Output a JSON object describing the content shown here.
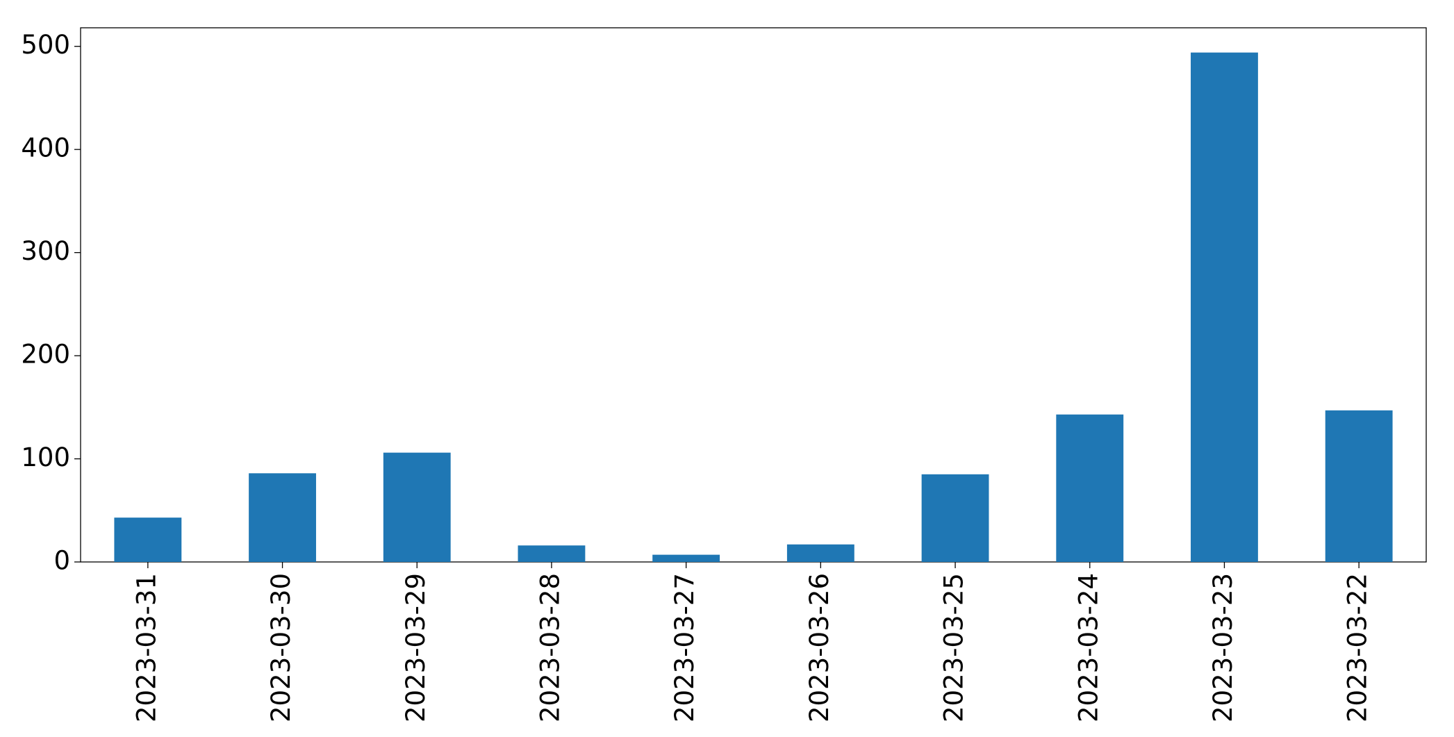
{
  "chart_data": {
    "type": "bar",
    "categories": [
      "2023-03-31",
      "2023-03-30",
      "2023-03-29",
      "2023-03-28",
      "2023-03-27",
      "2023-03-26",
      "2023-03-25",
      "2023-03-24",
      "2023-03-23",
      "2023-03-22"
    ],
    "values": [
      43,
      86,
      106,
      16,
      7,
      17,
      85,
      143,
      494,
      147
    ],
    "color": "#1f77b4",
    "ylim": [
      0,
      518
    ],
    "yticks": [
      0,
      100,
      200,
      300,
      400,
      500
    ],
    "grid": false
  }
}
